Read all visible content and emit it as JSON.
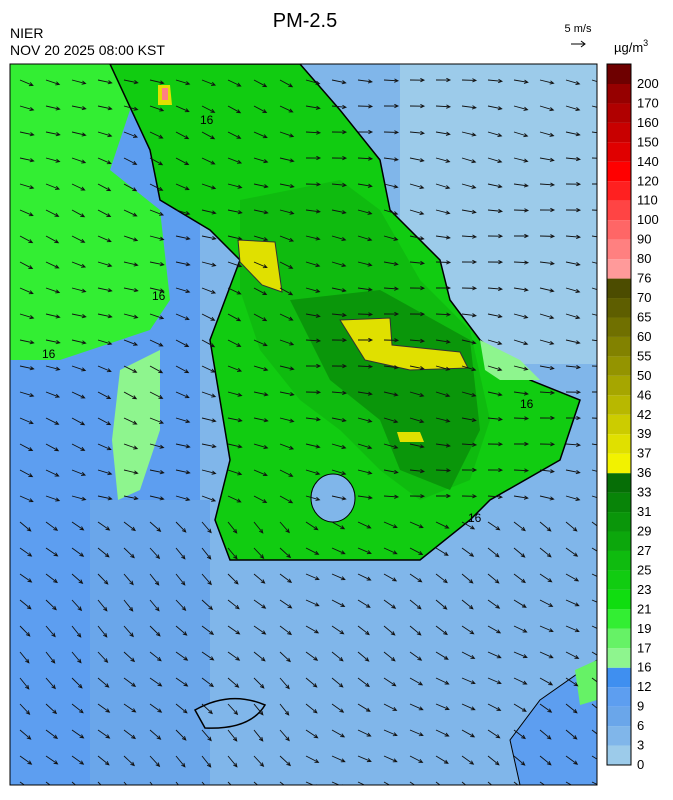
{
  "header": {
    "title": "PM-2.5",
    "agency": "NIER",
    "datetime": "NOV 20 2025 08:00 KST",
    "wind_scale": "5 m/s",
    "unit": "µg/m",
    "unit_superscript": "3"
  },
  "contour_labels": [
    16,
    16,
    16,
    16,
    16
  ],
  "colorbar": {
    "ticks": [
      0,
      3,
      6,
      9,
      12,
      16,
      17,
      19,
      21,
      23,
      25,
      27,
      29,
      31,
      33,
      36,
      37,
      39,
      42,
      46,
      50,
      55,
      60,
      65,
      70,
      76,
      80,
      90,
      100,
      110,
      120,
      140,
      150,
      160,
      170,
      200
    ],
    "colors": [
      "#9ccbea",
      "#80b6ea",
      "#6aa6ea",
      "#5d9ef0",
      "#3f8ff0",
      "#8ef58e",
      "#66f266",
      "#33ee33",
      "#10dd10",
      "#11cc11",
      "#0fbb0f",
      "#0ca70c",
      "#0a960a",
      "#088408",
      "#066e06",
      "#f2f200",
      "#e0e000",
      "#cccc00",
      "#b8b800",
      "#a6a600",
      "#949400",
      "#828200",
      "#707000",
      "#5e5e00",
      "#4c4c00",
      "#ff9a9a",
      "#ff8080",
      "#ff6666",
      "#ff4444",
      "#ff2020",
      "#ff0000",
      "#e00000",
      "#c80000",
      "#b00000",
      "#960000",
      "#6e0000"
    ]
  }
}
